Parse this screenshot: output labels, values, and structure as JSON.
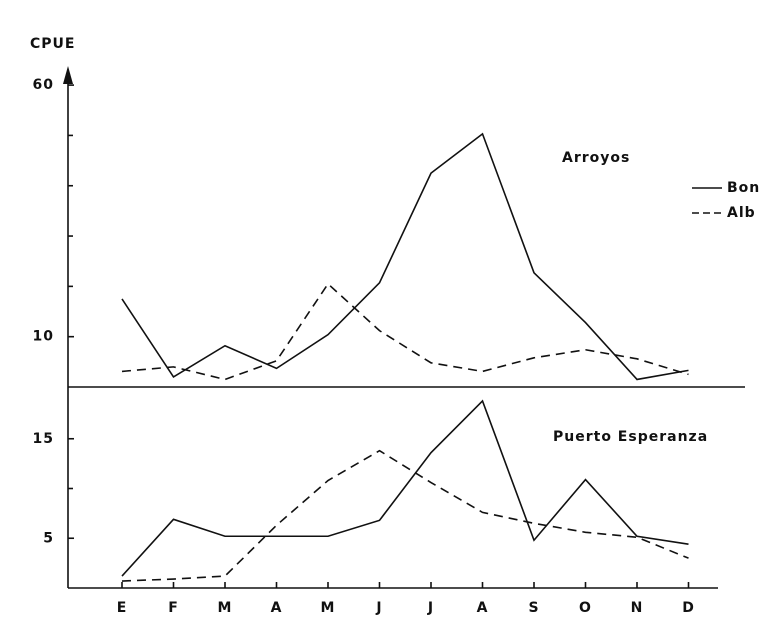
{
  "chart_data": [
    {
      "type": "line",
      "title": "CPUE",
      "annotation": "Arroyos",
      "ylim": [
        0,
        63
      ],
      "yticks": [
        10,
        60
      ],
      "yminorticks": [
        20,
        30,
        40,
        50
      ],
      "legend": "right",
      "series": [
        {
          "name": "Bon",
          "color": "#111111",
          "dash": "solid",
          "values": [
            17.5,
            2,
            8.2,
            3.7,
            10.4,
            20.7,
            42.5,
            50.3,
            22.7,
            12.8,
            1.5,
            3.3
          ]
        },
        {
          "name": "Alb",
          "color": "#111111",
          "dash": "dashed",
          "values": [
            3.1,
            4,
            1.5,
            5.2,
            20.5,
            11.2,
            4.8,
            3.1,
            5.8,
            7.4,
            5.6,
            2.5
          ]
        }
      ]
    },
    {
      "type": "line",
      "annotation": "Puerto Esperanza",
      "categories": [
        "E",
        "F",
        "M",
        "A",
        "M",
        "J",
        "J",
        "A",
        "S",
        "O",
        "N",
        "D"
      ],
      "ylim": [
        0,
        20
      ],
      "yticks": [
        5,
        15
      ],
      "yminorticks": [
        10
      ],
      "series": [
        {
          "name": "Bon",
          "color": "#111111",
          "dash": "solid",
          "values": [
            1.2,
            6.9,
            5.2,
            5.2,
            5.2,
            6.8,
            13.6,
            18.8,
            4.8,
            10.9,
            5.2,
            4.4
          ]
        },
        {
          "name": "Alb",
          "color": "#111111",
          "dash": "dashed",
          "values": [
            0.7,
            0.9,
            1.2,
            6.3,
            10.8,
            13.8,
            10.6,
            7.6,
            6.5,
            5.6,
            5.1,
            3
          ]
        }
      ]
    }
  ]
}
